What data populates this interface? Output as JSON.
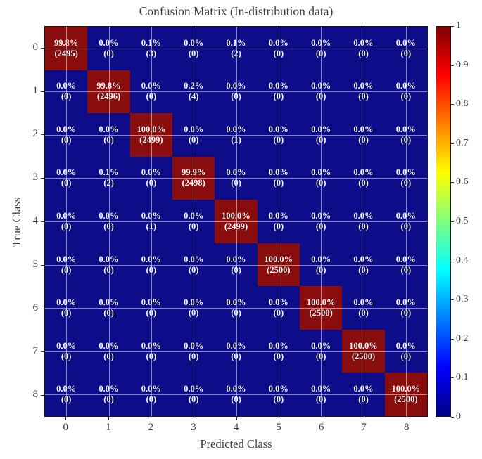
{
  "chart_data": {
    "type": "heatmap",
    "title": "Confusion Matrix (In-distribution data)",
    "xlabel": "Predicted Class",
    "ylabel": "True Class",
    "categories": [
      "0",
      "1",
      "2",
      "3",
      "4",
      "5",
      "6",
      "7",
      "8"
    ],
    "x_tick_labels": [
      "0",
      "1",
      "2",
      "3",
      "4",
      "5",
      "6",
      "7",
      "8"
    ],
    "y_tick_labels": [
      "0",
      "1",
      "2",
      "3",
      "4",
      "5",
      "6",
      "7",
      "8"
    ],
    "percent": [
      [
        99.8,
        0.0,
        0.1,
        0.0,
        0.1,
        0.0,
        0.0,
        0.0,
        0.0
      ],
      [
        0.0,
        99.8,
        0.0,
        0.2,
        0.0,
        0.0,
        0.0,
        0.0,
        0.0
      ],
      [
        0.0,
        0.0,
        100.0,
        0.0,
        0.0,
        0.0,
        0.0,
        0.0,
        0.0
      ],
      [
        0.0,
        0.1,
        0.0,
        99.9,
        0.0,
        0.0,
        0.0,
        0.0,
        0.0
      ],
      [
        0.0,
        0.0,
        0.0,
        0.0,
        100.0,
        0.0,
        0.0,
        0.0,
        0.0
      ],
      [
        0.0,
        0.0,
        0.0,
        0.0,
        0.0,
        100.0,
        0.0,
        0.0,
        0.0
      ],
      [
        0.0,
        0.0,
        0.0,
        0.0,
        0.0,
        0.0,
        100.0,
        0.0,
        0.0
      ],
      [
        0.0,
        0.0,
        0.0,
        0.0,
        0.0,
        0.0,
        0.0,
        100.0,
        0.0
      ],
      [
        0.0,
        0.0,
        0.0,
        0.0,
        0.0,
        0.0,
        0.0,
        0.0,
        100.0
      ]
    ],
    "counts": [
      [
        2495,
        0,
        3,
        0,
        2,
        0,
        0,
        0,
        0
      ],
      [
        0,
        2496,
        0,
        4,
        0,
        0,
        0,
        0,
        0
      ],
      [
        0,
        0,
        2499,
        0,
        1,
        0,
        0,
        0,
        0
      ],
      [
        0,
        2,
        0,
        2498,
        0,
        0,
        0,
        0,
        0
      ],
      [
        0,
        0,
        1,
        0,
        2499,
        0,
        0,
        0,
        0
      ],
      [
        0,
        0,
        0,
        0,
        0,
        2500,
        0,
        0,
        0
      ],
      [
        0,
        0,
        0,
        0,
        0,
        0,
        2500,
        0,
        0
      ],
      [
        0,
        0,
        0,
        0,
        0,
        0,
        0,
        2500,
        0
      ],
      [
        0,
        0,
        0,
        0,
        0,
        0,
        0,
        0,
        2500
      ]
    ],
    "colormap": "jet",
    "colorbar_ticks": [
      "0",
      "0.1",
      "0.2",
      "0.3",
      "0.4",
      "0.5",
      "0.6",
      "0.7",
      "0.8",
      "0.9",
      "1"
    ],
    "colorbar_range": [
      0,
      1
    ],
    "legend_position": "right-colorbar",
    "grid": true,
    "colors": {
      "cell_high": "#8a0d0d",
      "cell_low": "#0d0d8a",
      "cell_text": "#f5f5f5",
      "gridline": "rgba(235,235,245,0.55)",
      "axis_text": "#3d3d3d",
      "jet_stops": [
        "#000084",
        "#0000ff",
        "#00ffff",
        "#ffff00",
        "#ff0000",
        "#800000"
      ],
      "jet_stop_positions": [
        0,
        0.125,
        0.375,
        0.625,
        0.875,
        1
      ]
    }
  }
}
